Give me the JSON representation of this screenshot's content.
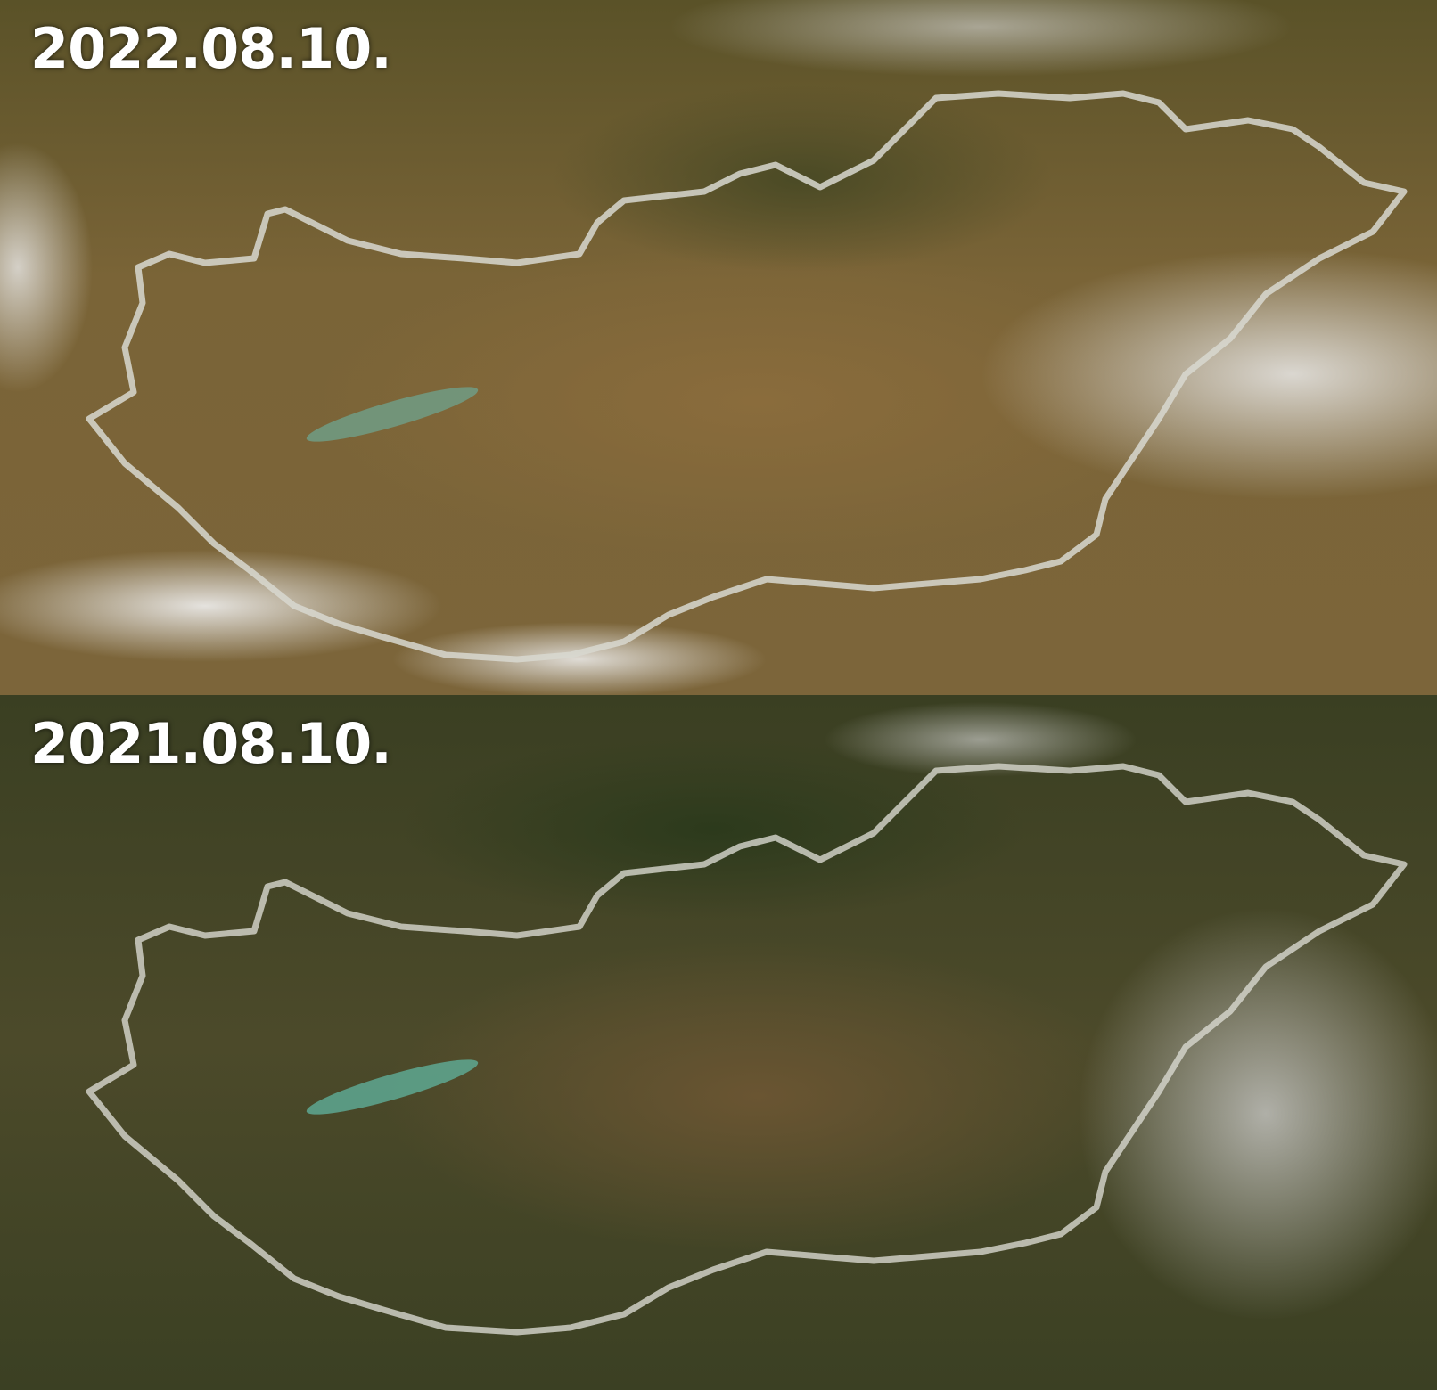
{
  "panels": [
    {
      "date": "2022.08.10.",
      "imagery": "satellite",
      "region": "Hungary border outlined"
    },
    {
      "date": "2021.08.10.",
      "imagery": "satellite",
      "region": "Hungary border outlined"
    }
  ],
  "colors": {
    "border": "#d8d8d0",
    "label": "#ffffff"
  }
}
